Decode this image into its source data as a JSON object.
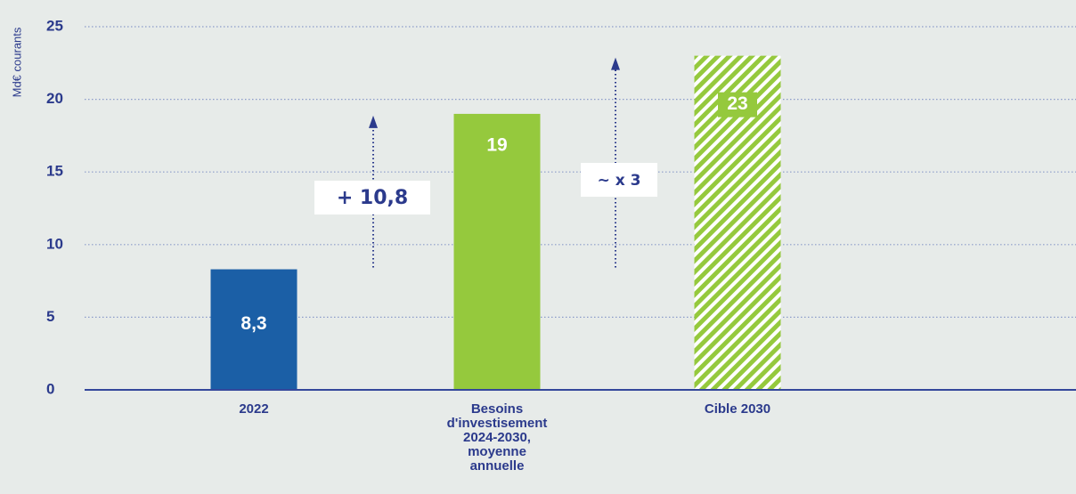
{
  "chart_data": {
    "type": "bar",
    "ylabel": "Md€ courants",
    "categories": [
      "2022",
      "Besoins d'investisement 2024-2030, moyenne annuelle",
      "Cible 2030"
    ],
    "values": [
      8.3,
      19,
      23
    ],
    "value_labels": [
      "8,3",
      "19",
      "23"
    ],
    "colors": [
      "#1b5fa6",
      "#95c93d",
      "#95c93d"
    ],
    "hatched": [
      false,
      false,
      true
    ],
    "ylim": [
      0,
      25
    ],
    "yticks": [
      0,
      5,
      10,
      15,
      20,
      25
    ],
    "grid": true,
    "annotations": [
      "+ 10,8",
      "~ x 3"
    ]
  }
}
